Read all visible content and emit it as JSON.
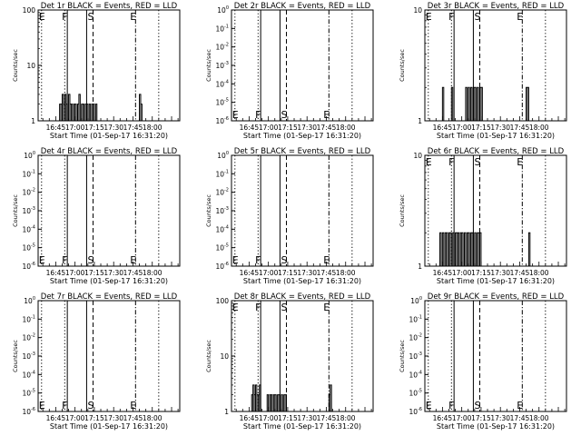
{
  "figure": {
    "xlabel": "Start Time (01-Sep-17 16:31:20)",
    "ylabel": "Counts/sec",
    "xticks": [
      "16:45",
      "17:00",
      "17:15",
      "17:30",
      "17:45",
      "18:00"
    ],
    "events": [
      {
        "letter": "E",
        "time": "16:34",
        "style": "dotted"
      },
      {
        "letter": "F",
        "time": "16:54",
        "style": "solid"
      },
      {
        "letter": "S",
        "time": "17:14",
        "style": "dashed"
      },
      {
        "letter": "E",
        "time": "17:47",
        "style": "dashdot"
      }
    ],
    "extra_lines": [
      {
        "time": "16:52",
        "style": "dotted"
      },
      {
        "time": "17:09",
        "style": "solid"
      },
      {
        "time": "18:05",
        "style": "dotted"
      }
    ],
    "colors": {
      "events": "#000000",
      "lld": "#ff0000",
      "background": "#ffffff"
    }
  },
  "chart_data": [
    {
      "type": "line",
      "title": "Det 1r BLACK = Events, RED = LLD",
      "xlabel": "Start Time (01-Sep-17 16:31:20)",
      "ylabel": "Counts/sec",
      "yscale": "log",
      "ylim": [
        1,
        100
      ],
      "ymode": "log100",
      "series": [
        {
          "x": [
            "16:48",
            "16:49",
            "16:50",
            "16:51",
            "16:52",
            "16:53",
            "16:54",
            "16:55",
            "16:56",
            "16:57",
            "16:58",
            "16:59",
            "17:00",
            "17:01",
            "17:02",
            "17:03",
            "17:04",
            "17:05",
            "17:06",
            "17:07",
            "17:08",
            "17:09",
            "17:10",
            "17:11",
            "17:12",
            "17:13",
            "17:14",
            "17:15",
            "17:16",
            "17:50",
            "17:51"
          ],
          "y": [
            2,
            2,
            3,
            2,
            3,
            2,
            1,
            3,
            2,
            2,
            1,
            2,
            2,
            1,
            2,
            3,
            1,
            2,
            2,
            1,
            2,
            2,
            1,
            2,
            1,
            2,
            2,
            1,
            2,
            3,
            2
          ]
        }
      ]
    },
    {
      "type": "line",
      "title": "Det 2r BLACK = Events, RED = LLD",
      "xlabel": "Start Time (01-Sep-17 16:31:20)",
      "ylabel": "Counts/sec",
      "yscale": "log",
      "ylim": [
        1e-06,
        1
      ],
      "ymode": "expAxis",
      "series": [
        {
          "x": [],
          "y": []
        }
      ]
    },
    {
      "type": "line",
      "title": "Det 3r BLACK = Events, RED = LLD",
      "xlabel": "Start Time (01-Sep-17 16:31:20)",
      "ylabel": "Counts/sec",
      "yscale": "log",
      "ylim": [
        1,
        10
      ],
      "ymode": "log10",
      "series": [
        {
          "x": [
            "16:45",
            "16:52",
            "17:02",
            "17:03",
            "17:04",
            "17:05",
            "17:06",
            "17:07",
            "17:08",
            "17:09",
            "17:10",
            "17:11",
            "17:12",
            "17:13",
            "17:14",
            "17:15",
            "17:50",
            "17:51"
          ],
          "y": [
            2,
            2,
            1,
            2,
            1,
            2,
            1,
            2,
            1,
            2,
            2,
            1,
            2,
            1,
            2,
            2,
            2,
            2
          ]
        }
      ]
    },
    {
      "type": "line",
      "title": "Det 4r BLACK = Events, RED = LLD",
      "xlabel": "Start Time (01-Sep-17 16:31:20)",
      "ylabel": "Counts/sec",
      "yscale": "log",
      "ylim": [
        1e-06,
        1
      ],
      "ymode": "expAxis",
      "series": [
        {
          "x": [],
          "y": []
        }
      ]
    },
    {
      "type": "line",
      "title": "Det 5r BLACK = Events, RED = LLD",
      "xlabel": "Start Time (01-Sep-17 16:31:20)",
      "ylabel": "Counts/sec",
      "yscale": "log",
      "ylim": [
        1e-06,
        1
      ],
      "ymode": "expAxis",
      "series": [
        {
          "x": [],
          "y": []
        }
      ]
    },
    {
      "type": "line",
      "title": "Det 6r BLACK = Events, RED = LLD",
      "xlabel": "Start Time (01-Sep-17 16:31:20)",
      "ylabel": "Counts/sec",
      "yscale": "log",
      "ylim": [
        1,
        10
      ],
      "ymode": "log10",
      "series": [
        {
          "x": [
            "16:43",
            "16:44",
            "16:45",
            "16:46",
            "16:47",
            "16:48",
            "16:49",
            "16:50",
            "16:51",
            "16:52",
            "16:53",
            "16:54",
            "16:55",
            "16:56",
            "16:57",
            "16:58",
            "16:59",
            "17:00",
            "17:01",
            "17:02",
            "17:03",
            "17:04",
            "17:05",
            "17:06",
            "17:07",
            "17:08",
            "17:09",
            "17:10",
            "17:11",
            "17:12",
            "17:13",
            "17:14",
            "17:52"
          ],
          "y": [
            2,
            1,
            2,
            1,
            2,
            2,
            1,
            2,
            2,
            1,
            2,
            1,
            2,
            2,
            2,
            1,
            2,
            2,
            1,
            2,
            1,
            2,
            2,
            1,
            2,
            2,
            1,
            2,
            1,
            2,
            2,
            2,
            2
          ]
        }
      ]
    },
    {
      "type": "line",
      "title": "Det 7r BLACK = Events, RED = LLD",
      "xlabel": "Start Time (01-Sep-17 16:31:20)",
      "ylabel": "Counts/sec",
      "yscale": "log",
      "ylim": [
        1e-06,
        1
      ],
      "ymode": "expAxis",
      "series": [
        {
          "x": [],
          "y": []
        }
      ]
    },
    {
      "type": "line",
      "title": "Det 8r BLACK = Events, RED = LLD",
      "xlabel": "Start Time (01-Sep-17 16:31:20)",
      "ylabel": "Counts/sec",
      "yscale": "log",
      "ylim": [
        1,
        100
      ],
      "ymode": "log100",
      "series": [
        {
          "x": [
            "16:47",
            "16:48",
            "16:49",
            "16:50",
            "16:51",
            "16:52",
            "16:53",
            "16:54",
            "16:59",
            "17:00",
            "17:01",
            "17:02",
            "17:03",
            "17:04",
            "17:05",
            "17:06",
            "17:07",
            "17:08",
            "17:09",
            "17:10",
            "17:11",
            "17:12",
            "17:13",
            "17:47",
            "17:48"
          ],
          "y": [
            2,
            3,
            2,
            3,
            2,
            2,
            3,
            1,
            2,
            1,
            2,
            2,
            1,
            2,
            2,
            1,
            2,
            2,
            1,
            2,
            1,
            2,
            2,
            2,
            3
          ]
        }
      ]
    },
    {
      "type": "line",
      "title": "Det 9r BLACK = Events, RED = LLD",
      "xlabel": "Start Time (01-Sep-17 16:31:20)",
      "ylabel": "Counts/sec",
      "yscale": "log",
      "ylim": [
        1e-06,
        1
      ],
      "ymode": "expAxis",
      "series": [
        {
          "x": [],
          "y": []
        }
      ]
    }
  ]
}
